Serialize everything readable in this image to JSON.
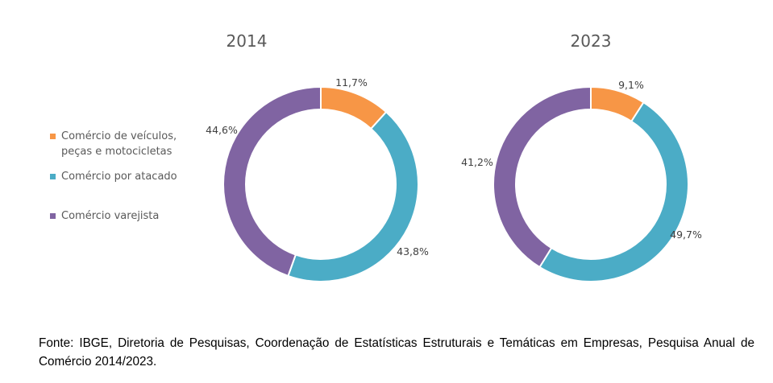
{
  "chart_data": {
    "type": "pie",
    "variant": "donut",
    "legend_position": "left",
    "legend": [
      {
        "label_line1": "Comércio de veículos,",
        "label_line2": "peças e motocicletas",
        "color": "#F79646"
      },
      {
        "label_line1": "Comércio por atacado",
        "label_line2": "",
        "color": "#4BACC6"
      },
      {
        "label_line1": "Comércio varejista",
        "label_line2": "",
        "color": "#8064A2"
      }
    ],
    "charts": [
      {
        "title": "2014",
        "slices": [
          {
            "category": "Comércio de veículos, peças e motocicletas",
            "value": 11.7,
            "label": "11,7%",
            "color": "#F79646"
          },
          {
            "category": "Comércio por atacado",
            "value": 43.8,
            "label": "43,8%",
            "color": "#4BACC6"
          },
          {
            "category": "Comércio varejista",
            "value": 44.6,
            "label": "44,6%",
            "color": "#8064A2"
          }
        ]
      },
      {
        "title": "2023",
        "slices": [
          {
            "category": "Comércio de veículos, peças e motocicletas",
            "value": 9.1,
            "label": "9,1%",
            "color": "#F79646"
          },
          {
            "category": "Comércio por atacado",
            "value": 49.7,
            "label": "49,7%",
            "color": "#4BACC6"
          },
          {
            "category": "Comércio varejista",
            "value": 41.2,
            "label": "41,2%",
            "color": "#8064A2"
          }
        ]
      }
    ]
  },
  "source_note": "Fonte: IBGE, Diretoria de Pesquisas, Coordenação de Estatísticas Estruturais e Temáticas em Empresas, Pesquisa Anual de Comércio 2014/2023."
}
